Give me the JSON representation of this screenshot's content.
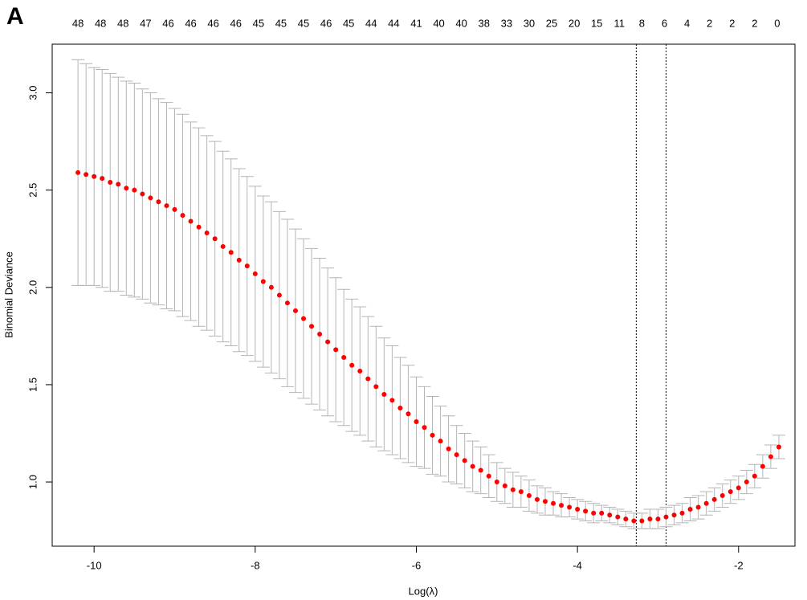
{
  "panel_label": "A",
  "chart_data": {
    "type": "errorbar",
    "xlabel": "Log(λ)",
    "ylabel": "Binomial Deviance",
    "xlim": [
      -10.52,
      -1.3
    ],
    "ylim": [
      0.67,
      3.25
    ],
    "xticks": [
      -10,
      -8,
      -6,
      -4,
      -2
    ],
    "yticks": [
      {
        "value": 1,
        "label": "1.0"
      },
      {
        "value": 1.5,
        "label": "1.5"
      },
      {
        "value": 2,
        "label": "2.0"
      },
      {
        "value": 2.5,
        "label": "2.5"
      },
      {
        "value": 3,
        "label": "3.0"
      }
    ],
    "top_ticks": [
      {
        "value": -10.2,
        "label": "48"
      },
      {
        "value": -9.92,
        "label": "48"
      },
      {
        "value": -9.64,
        "label": "48"
      },
      {
        "value": -9.36,
        "label": "47"
      },
      {
        "value": -9.08,
        "label": "46"
      },
      {
        "value": -8.8,
        "label": "46"
      },
      {
        "value": -8.52,
        "label": "46"
      },
      {
        "value": -8.24,
        "label": "46"
      },
      {
        "value": -7.96,
        "label": "45"
      },
      {
        "value": -7.68,
        "label": "45"
      },
      {
        "value": -7.4,
        "label": "45"
      },
      {
        "value": -7.12,
        "label": "46"
      },
      {
        "value": -6.84,
        "label": "45"
      },
      {
        "value": -6.56,
        "label": "44"
      },
      {
        "value": -6.28,
        "label": "44"
      },
      {
        "value": -6,
        "label": "41"
      },
      {
        "value": -5.72,
        "label": "40"
      },
      {
        "value": -5.44,
        "label": "40"
      },
      {
        "value": -5.16,
        "label": "38"
      },
      {
        "value": -4.88,
        "label": "33"
      },
      {
        "value": -4.6,
        "label": "30"
      },
      {
        "value": -4.32,
        "label": "25"
      },
      {
        "value": -4.04,
        "label": "20"
      },
      {
        "value": -3.76,
        "label": "15"
      },
      {
        "value": -3.48,
        "label": "11"
      },
      {
        "value": -3.2,
        "label": "8"
      },
      {
        "value": -2.92,
        "label": "6"
      },
      {
        "value": -2.64,
        "label": "4"
      },
      {
        "value": -2.36,
        "label": "2"
      },
      {
        "value": -2.08,
        "label": "2"
      },
      {
        "value": -1.8,
        "label": "2"
      },
      {
        "value": -1.52,
        "label": "0"
      }
    ],
    "vlines": [
      -3.27,
      -2.9
    ],
    "color": "#ff0000",
    "error_color": "#b4b4b4",
    "x": [
      -10.2,
      -10.1,
      -10,
      -9.9,
      -9.8,
      -9.7,
      -9.6,
      -9.5,
      -9.4,
      -9.3,
      -9.2,
      -9.1,
      -9,
      -8.9,
      -8.8,
      -8.7,
      -8.6,
      -8.5,
      -8.4,
      -8.3,
      -8.2,
      -8.1,
      -8,
      -7.9,
      -7.8,
      -7.7,
      -7.6,
      -7.5,
      -7.4,
      -7.3,
      -7.2,
      -7.1,
      -7,
      -6.9,
      -6.8,
      -6.7,
      -6.6,
      -6.5,
      -6.4,
      -6.3,
      -6.2,
      -6.1,
      -6,
      -5.9,
      -5.8,
      -5.7,
      -5.6,
      -5.5,
      -5.4,
      -5.3,
      -5.2,
      -5.1,
      -5,
      -4.9,
      -4.8,
      -4.7,
      -4.6,
      -4.5,
      -4.4,
      -4.3,
      -4.2,
      -4.1,
      -4,
      -3.9,
      -3.8,
      -3.7,
      -3.6,
      -3.5,
      -3.4,
      -3.3,
      -3.2,
      -3.1,
      -3,
      -2.9,
      -2.8,
      -2.7,
      -2.6,
      -2.5,
      -2.4,
      -2.3,
      -2.2,
      -2.1,
      -2,
      -1.9,
      -1.8,
      -1.7,
      -1.6,
      -1.5
    ],
    "values": [
      2.59,
      2.58,
      2.57,
      2.56,
      2.54,
      2.53,
      2.51,
      2.5,
      2.48,
      2.46,
      2.44,
      2.42,
      2.4,
      2.37,
      2.34,
      2.31,
      2.28,
      2.25,
      2.21,
      2.18,
      2.14,
      2.11,
      2.07,
      2.03,
      2,
      1.96,
      1.92,
      1.88,
      1.84,
      1.8,
      1.76,
      1.72,
      1.68,
      1.64,
      1.6,
      1.57,
      1.53,
      1.49,
      1.45,
      1.42,
      1.38,
      1.35,
      1.31,
      1.28,
      1.24,
      1.21,
      1.17,
      1.14,
      1.11,
      1.08,
      1.06,
      1.03,
      1,
      0.98,
      0.96,
      0.95,
      0.93,
      0.91,
      0.9,
      0.89,
      0.88,
      0.87,
      0.86,
      0.85,
      0.84,
      0.84,
      0.83,
      0.82,
      0.81,
      0.8,
      0.8,
      0.81,
      0.81,
      0.82,
      0.83,
      0.84,
      0.86,
      0.87,
      0.89,
      0.91,
      0.93,
      0.95,
      0.97,
      1,
      1.03,
      1.08,
      1.13,
      1.18
    ],
    "errors": [
      0.58,
      0.57,
      0.56,
      0.56,
      0.56,
      0.55,
      0.55,
      0.55,
      0.54,
      0.54,
      0.53,
      0.53,
      0.52,
      0.52,
      0.51,
      0.51,
      0.5,
      0.5,
      0.49,
      0.48,
      0.47,
      0.46,
      0.45,
      0.44,
      0.44,
      0.43,
      0.43,
      0.42,
      0.41,
      0.4,
      0.39,
      0.38,
      0.37,
      0.35,
      0.34,
      0.33,
      0.32,
      0.31,
      0.29,
      0.28,
      0.26,
      0.25,
      0.23,
      0.21,
      0.2,
      0.18,
      0.17,
      0.15,
      0.14,
      0.13,
      0.12,
      0.11,
      0.1,
      0.09,
      0.09,
      0.08,
      0.08,
      0.07,
      0.07,
      0.06,
      0.06,
      0.05,
      0.05,
      0.05,
      0.05,
      0.04,
      0.04,
      0.04,
      0.04,
      0.04,
      0.04,
      0.05,
      0.05,
      0.05,
      0.05,
      0.05,
      0.06,
      0.06,
      0.06,
      0.06,
      0.06,
      0.06,
      0.06,
      0.06,
      0.06,
      0.06,
      0.06,
      0.06
    ]
  }
}
